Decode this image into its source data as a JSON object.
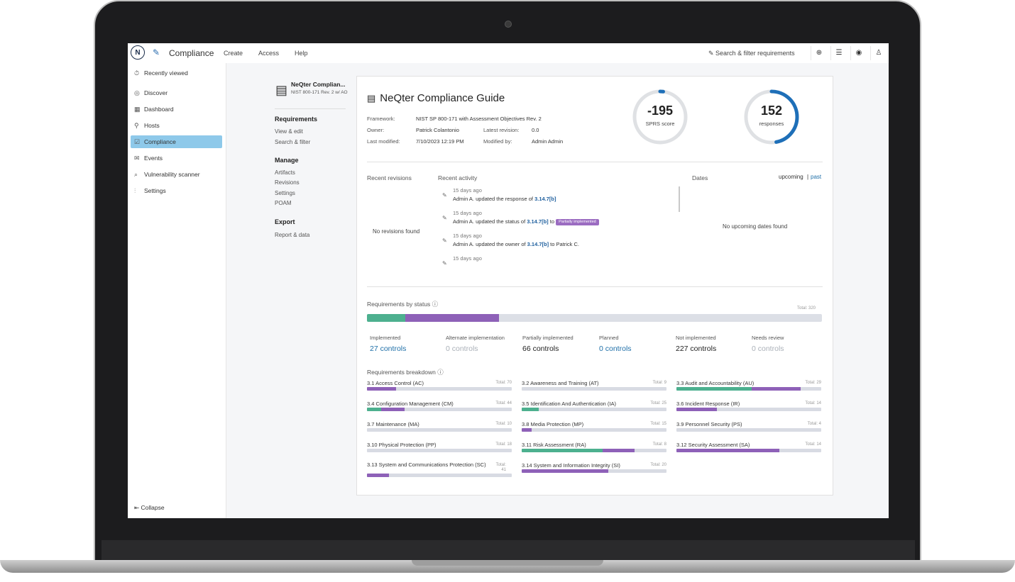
{
  "topbar": {
    "logo": "N",
    "app_title": "Compliance",
    "menu": [
      "Create",
      "Access",
      "Help"
    ],
    "search_label": "Search & filter requirements"
  },
  "sidebar": {
    "items": [
      {
        "label": "Recently viewed",
        "icon": "clock-icon",
        "glyph": "⏱"
      },
      {
        "label": "Discover",
        "icon": "compass-icon",
        "glyph": "◎"
      },
      {
        "label": "Dashboard",
        "icon": "dashboard-icon",
        "glyph": "▦"
      },
      {
        "label": "Hosts",
        "icon": "hosts-icon",
        "glyph": "⚲"
      },
      {
        "label": "Compliance",
        "icon": "compliance-icon",
        "glyph": "☑"
      },
      {
        "label": "Events",
        "icon": "mail-icon",
        "glyph": "✉"
      },
      {
        "label": "Vulnerability scanner",
        "icon": "scanner-icon",
        "glyph": "⌕"
      },
      {
        "label": "Settings",
        "icon": "sliders-icon",
        "glyph": "⫶"
      }
    ],
    "collapse_label": "Collapse"
  },
  "subnav": {
    "doc_title": "NeQter Complian...",
    "doc_subtitle": "NIST 800-171 Rev. 2 w/ AO",
    "requirements_heading": "Requirements",
    "requirements_links": [
      "View & edit",
      "Search & filter"
    ],
    "manage_heading": "Manage",
    "manage_links": [
      "Artifacts",
      "Revisions",
      "Settings",
      "POAM"
    ],
    "export_heading": "Export",
    "export_links": [
      "Report & data"
    ]
  },
  "guide": {
    "title": "NeQter Compliance Guide",
    "framework_label": "Framework:",
    "framework_value": "NIST SP 800-171 with Assessment Objectives Rev. 2",
    "owner_label": "Owner:",
    "owner_value": "Patrick Colantonio",
    "latest_revision_label": "Latest revision:",
    "latest_revision_value": "0.0",
    "last_modified_label": "Last modified:",
    "last_modified_value": "7/10/2023 12:19 PM",
    "modified_by_label": "Modified by:",
    "modified_by_value": "Admin Admin"
  },
  "gauges": {
    "sprs_score": "-195",
    "sprs_label": "SPRS score",
    "sprs_fraction": 0.02,
    "responses": "152",
    "responses_label": "responses",
    "responses_fraction": 0.47,
    "accent_color": "#1e6fb8"
  },
  "recent": {
    "revisions_heading": "Recent revisions",
    "no_revisions": "No revisions found",
    "activity_heading": "Recent activity",
    "activities": [
      {
        "time": "15 days ago",
        "prefix": "Admin A. updated the response of ",
        "ref": "3.14.7[b]",
        "suffix": ""
      },
      {
        "time": "15 days ago",
        "prefix": "Admin A. updated the status of ",
        "ref": "3.14.7[b]",
        "suffix": " to ",
        "badge": "Partially implemented"
      },
      {
        "time": "15 days ago",
        "prefix": "Admin A. updated the owner of ",
        "ref": "3.14.7[b]",
        "suffix": " to Patrick C."
      },
      {
        "time": "15 days ago"
      }
    ],
    "dates_heading": "Dates",
    "dates_tab_upcoming": "upcoming",
    "dates_separator": "|",
    "dates_tab_past": "past",
    "no_dates": "No upcoming dates found"
  },
  "status": {
    "heading": "Requirements by status ⓘ",
    "total": "Total: 320",
    "colors": {
      "implemented": "#4db08f",
      "partial": "#8e61b8",
      "none": "#dcdfe6"
    },
    "items": [
      {
        "label": "Implemented",
        "value": "27 controls",
        "count": 27
      },
      {
        "label": "Alternate implementation",
        "value": "0 controls",
        "count": 0
      },
      {
        "label": "Partially implemented",
        "value": "66 controls",
        "count": 66
      },
      {
        "label": "Planned",
        "value": "0 controls",
        "count": 0
      },
      {
        "label": "Not implemented",
        "value": "227 controls",
        "count": 227
      },
      {
        "label": "Needs review",
        "value": "0 controls",
        "count": 0
      }
    ]
  },
  "breakdown": {
    "heading": "Requirements breakdown ⓘ",
    "families": [
      {
        "name": "3.1 Access Control (AC)",
        "total": "Total: 70",
        "implemented": 0,
        "partial": 0.2
      },
      {
        "name": "3.2 Awareness and Training (AT)",
        "total": "Total: 9",
        "implemented": 0,
        "partial": 0
      },
      {
        "name": "3.3 Audit and Accountability (AU)",
        "total": "Total: 29",
        "implemented": 0.52,
        "partial": 0.34
      },
      {
        "name": "3.4 Configuration Management (CM)",
        "total": "Total: 44",
        "implemented": 0.1,
        "partial": 0.16
      },
      {
        "name": "3.5 Identification And Authentication (IA)",
        "total": "Total: 25",
        "implemented": 0.12,
        "partial": 0
      },
      {
        "name": "3.6 Incident Response (IR)",
        "total": "Total: 14",
        "implemented": 0,
        "partial": 0.28
      },
      {
        "name": "3.7 Maintenance (MA)",
        "total": "Total: 10",
        "implemented": 0,
        "partial": 0
      },
      {
        "name": "3.8 Media Protection (MP)",
        "total": "Total: 15",
        "implemented": 0,
        "partial": 0.07
      },
      {
        "name": "3.9 Personnel Security (PS)",
        "total": "Total: 4",
        "implemented": 0,
        "partial": 0
      },
      {
        "name": "3.10 Physical Protection (PP)",
        "total": "Total: 18",
        "implemented": 0,
        "partial": 0
      },
      {
        "name": "3.11 Risk Assessment (RA)",
        "total": "Total: 8",
        "implemented": 0.56,
        "partial": 0.22
      },
      {
        "name": "3.12 Security Assessment (SA)",
        "total": "Total: 14",
        "implemented": 0,
        "partial": 0.71
      },
      {
        "name": "3.13 System and Communications Protection (SC)",
        "total": "Total: 41",
        "implemented": 0,
        "partial": 0.15
      },
      {
        "name": "3.14 System and Information Integrity (SI)",
        "total": "Total: 20",
        "implemented": 0,
        "partial": 0.6
      }
    ]
  }
}
